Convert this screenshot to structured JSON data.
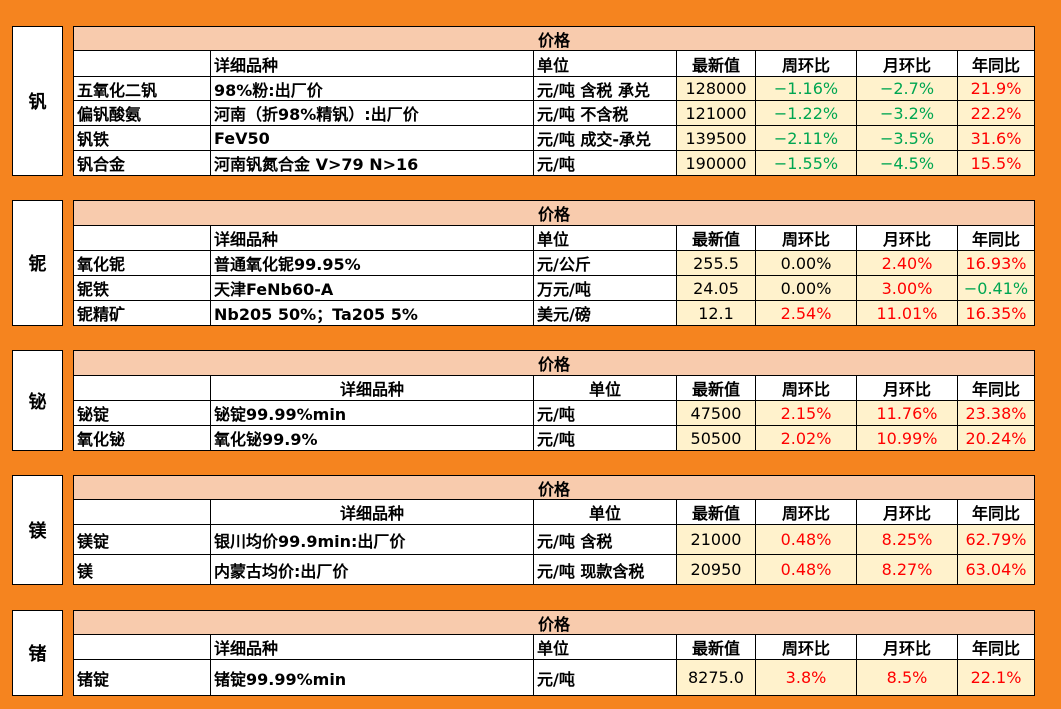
{
  "sections": [
    {
      "metal": "钒",
      "header": "价格",
      "columns": [
        "详细品种",
        "单位",
        "最新值",
        "周环比",
        "月环比",
        "年同比"
      ],
      "rows": [
        [
          "五氧化二钒",
          "98%粉:出厂价",
          "元/吨 含税 承兑",
          "128000",
          "−1.16%",
          "−2.7%",
          "21.9%"
        ],
        [
          "偏钒酸氨",
          "河南（折98%精钒）:出厂价",
          "元/吨 不含税",
          "121000",
          "−1.22%",
          "−3.2%",
          "22.2%"
        ],
        [
          "钒铁",
          "FeV50",
          "元/吨 成交-承兑",
          "139500",
          "−2.11%",
          "−3.5%",
          "31.6%"
        ],
        [
          "钒合金",
          "河南钒氮合金 V>79 N>16",
          "元/吨",
          "190000",
          "−1.55%",
          "−4.5%",
          "15.5%"
        ]
      ]
    },
    {
      "metal": "铌",
      "header": "价格",
      "columns": [
        "详细品种",
        "单位",
        "最新值",
        "周环比",
        "月环比",
        "年同比"
      ],
      "rows": [
        [
          "氧化铌",
          "普通氧化铌99.95%",
          "元/公斤",
          "255.5",
          "0.00%",
          "2.40%",
          "16.93%"
        ],
        [
          "铌铁",
          "天津FeNb60-A",
          "万元/吨",
          "24.05",
          "0.00%",
          "3.00%",
          "−0.41%"
        ],
        [
          "铌精矿",
          "Nb205 50%；Ta205 5%",
          "美元/磅",
          "12.1",
          "2.54%",
          "11.01%",
          "16.35%"
        ]
      ]
    },
    {
      "metal": "铋",
      "header": "价格",
      "columns": [
        "详细品种",
        "单位",
        "最新值",
        "周环比",
        "月环比",
        "年同比"
      ],
      "rows": [
        [
          "铋锭",
          "铋锭99.99%min",
          "元/吨",
          "47500",
          "2.15%",
          "11.76%",
          "23.38%"
        ],
        [
          "氧化铋",
          "氧化铋99.9%",
          "元/吨",
          "50500",
          "2.02%",
          "10.99%",
          "20.24%"
        ]
      ]
    },
    {
      "metal": "镁",
      "header": "价格",
      "columns": [
        "详细品种",
        "单位",
        "最新值",
        "周环比",
        "月环比",
        "年同比"
      ],
      "rows": [
        [
          "镁锭",
          "银川均价99.9min:出厂价",
          "元/吨 含税",
          "21000",
          "0.48%",
          "8.25%",
          "62.79%"
        ],
        [
          "镁",
          "内蒙古均价:出厂价",
          "元/吨 现款含税",
          "20950",
          "0.48%",
          "8.27%",
          "63.04%"
        ]
      ]
    },
    {
      "metal": "锗",
      "header": "价格",
      "columns": [
        "详细品种",
        "单位",
        "最新值",
        "周环比",
        "月环比",
        "年同比"
      ],
      "rows": [
        [
          "锗锭",
          "锗锭99.99%min",
          "元/吨",
          "8275.0",
          "3.8%",
          "8.5%",
          "22.1%"
        ]
      ]
    }
  ]
}
